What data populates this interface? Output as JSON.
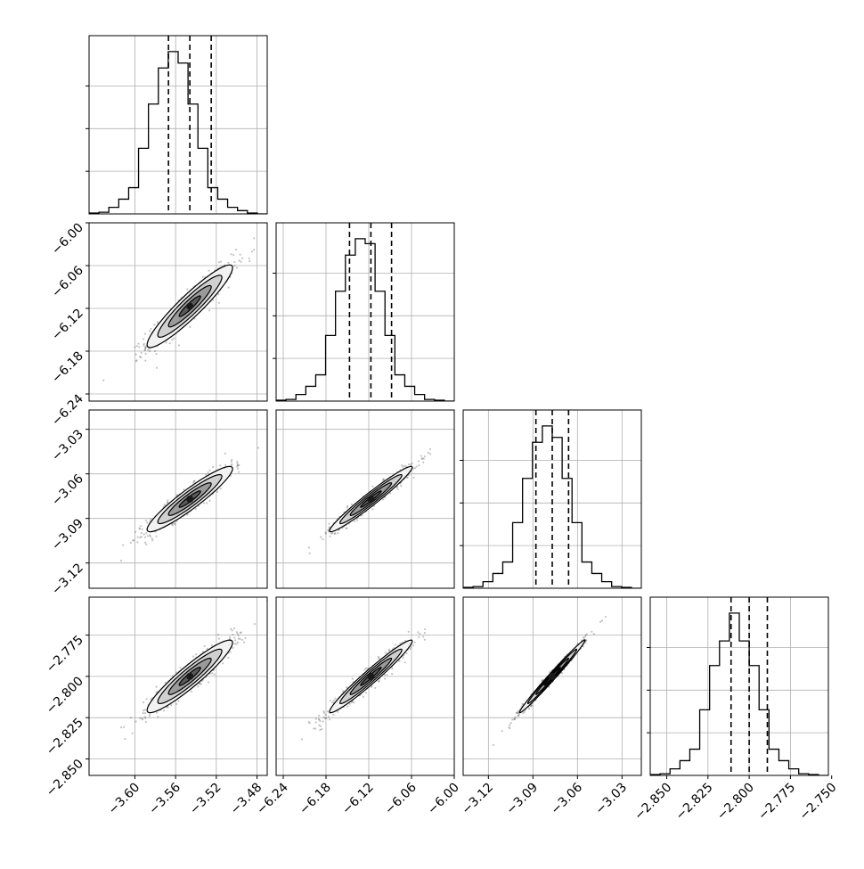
{
  "chart_data": {
    "type": "corner",
    "variables": [
      {
        "ticks": [
          -3.6,
          -3.56,
          -3.52,
          -3.48
        ],
        "tick_labels": [
          "−3.60",
          "−3.56",
          "−3.52",
          "−3.48"
        ],
        "range": [
          -3.645,
          -3.47
        ],
        "quantiles": [
          -3.567,
          -3.546,
          -3.525
        ],
        "hist": [
          0.005,
          0.01,
          0.04,
          0.09,
          0.16,
          0.4,
          0.67,
          0.89,
          0.99,
          0.92,
          0.67,
          0.4,
          0.16,
          0.09,
          0.04,
          0.02,
          0.005,
          0.0
        ]
      },
      {
        "ticks": [
          -6.24,
          -6.18,
          -6.12,
          -6.06,
          -6.0
        ],
        "tick_labels": [
          "−6.24",
          "−6.18",
          "−6.12",
          "−6.06",
          "−6.00"
        ],
        "range": [
          -6.25,
          -6.0
        ],
        "quantiles": [
          -6.147,
          -6.117,
          -6.088
        ],
        "hist": [
          0.005,
          0.01,
          0.04,
          0.09,
          0.16,
          0.4,
          0.67,
          0.89,
          0.99,
          0.96,
          0.67,
          0.4,
          0.16,
          0.09,
          0.04,
          0.01,
          0.005,
          0.0
        ]
      },
      {
        "ticks": [
          -3.12,
          -3.09,
          -3.06,
          -3.03
        ],
        "tick_labels": [
          "−3.12",
          "−3.09",
          "−3.06",
          "−3.03"
        ],
        "range": [
          -3.137,
          -3.017
        ],
        "quantiles": [
          -3.088,
          -3.077,
          -3.066
        ],
        "hist": [
          0.005,
          0.01,
          0.04,
          0.09,
          0.16,
          0.4,
          0.67,
          0.89,
          0.99,
          0.92,
          0.67,
          0.4,
          0.16,
          0.09,
          0.04,
          0.01,
          0.005,
          0.0
        ]
      },
      {
        "ticks": [
          -2.85,
          -2.825,
          -2.8,
          -2.775,
          -2.75
        ],
        "tick_labels": [
          "−2.850",
          "−2.825",
          "−2.800",
          "−2.775",
          "−2.750"
        ],
        "range": [
          -2.86,
          -2.752
        ],
        "quantiles": [
          -2.811,
          -2.8,
          -2.789
        ],
        "hist": [
          0.005,
          0.01,
          0.04,
          0.09,
          0.16,
          0.4,
          0.67,
          0.82,
          0.99,
          0.82,
          0.67,
          0.4,
          0.16,
          0.09,
          0.04,
          0.01,
          0.005,
          0.0
        ]
      }
    ],
    "centers": [
      -3.546,
      -6.117,
      -3.077,
      -2.8
    ],
    "sigmas": [
      0.021,
      0.029,
      0.011,
      0.011
    ],
    "correlations": [
      [
        1.0,
        0.93,
        0.93,
        0.93
      ],
      [
        0.93,
        1.0,
        0.97,
        0.97
      ],
      [
        0.93,
        0.97,
        1.0,
        0.99
      ],
      [
        0.93,
        0.97,
        0.99,
        1.0
      ]
    ],
    "contour_levels_sigma": [
      0.5,
      1.0,
      1.5,
      2.0
    ],
    "grid": true,
    "colors": {
      "line": "#000000",
      "grid": "#b0b0b0",
      "scatter": "#555555",
      "contour_fills": [
        "#f2f2f2",
        "#d0d0d0",
        "#9a9a9a",
        "#5a5a5a",
        "#1a1a1a"
      ]
    }
  }
}
